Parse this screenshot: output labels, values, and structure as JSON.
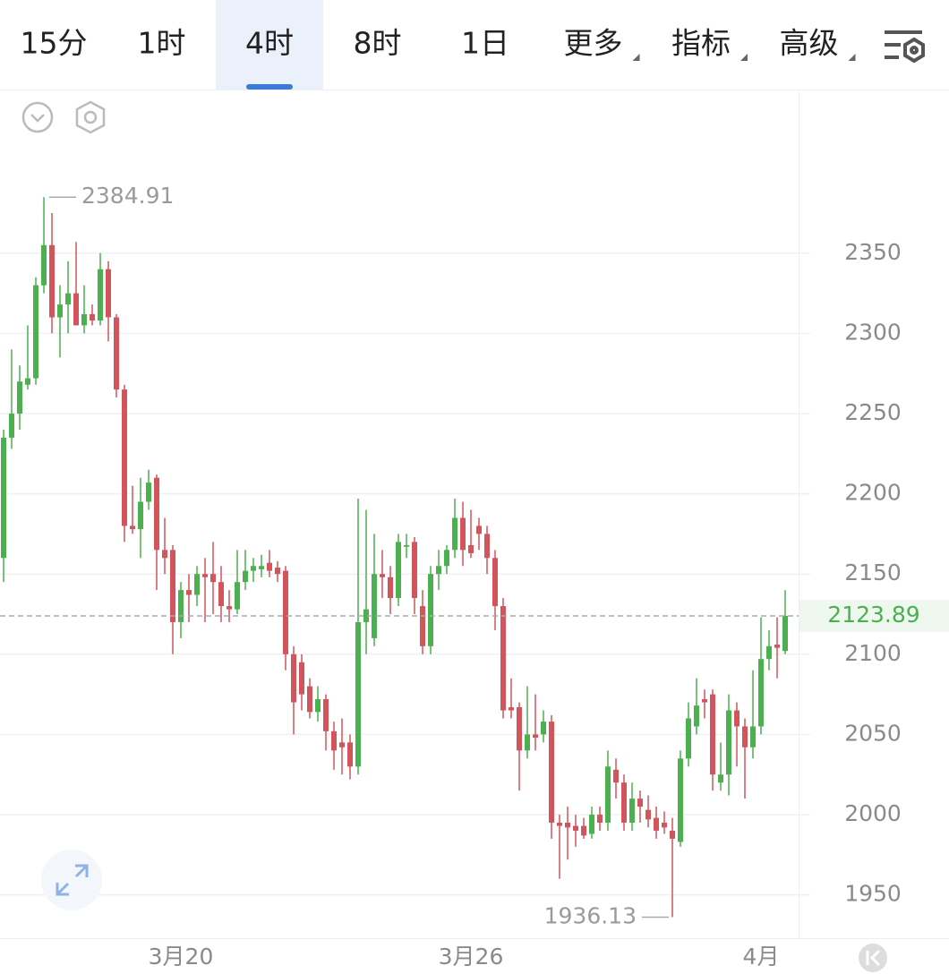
{
  "toolbar": {
    "tabs": [
      "15分",
      "1时",
      "4时",
      "8时",
      "1日",
      "更多",
      "指标",
      "高级"
    ],
    "active_tab": 2
  },
  "chart_data": {
    "type": "candlestick",
    "categories": [
      null,
      null,
      null,
      null,
      null,
      null,
      null,
      null,
      null,
      null,
      null,
      null,
      null,
      null,
      null,
      null,
      null,
      null,
      null,
      null,
      null,
      null,
      "3月20",
      null,
      null,
      null,
      null,
      null,
      null,
      null,
      null,
      null,
      null,
      null,
      null,
      null,
      null,
      null,
      null,
      null,
      null,
      null,
      null,
      null,
      null,
      null,
      null,
      null,
      null,
      null,
      null,
      null,
      null,
      null,
      null,
      null,
      null,
      null,
      "3月26",
      null,
      null,
      null,
      null,
      null,
      null,
      null,
      null,
      null,
      null,
      null,
      null,
      null,
      null,
      null,
      null,
      null,
      null,
      null,
      null,
      null,
      null,
      null,
      null,
      null,
      null,
      null,
      null,
      null,
      null,
      null,
      null,
      null,
      null,
      null,
      "4月",
      null,
      null,
      null
    ],
    "open": [
      2160,
      2235,
      2250,
      2268,
      2272,
      2330,
      2355,
      2310,
      2318,
      2325,
      2305,
      2312,
      2308,
      2340,
      2310,
      2265,
      2180,
      2178,
      2195,
      2210,
      2165,
      2165,
      2120,
      2140,
      2137,
      2150,
      2150,
      2145,
      2130,
      2128,
      2145,
      2152,
      2153,
      2157,
      2154,
      2152,
      2100,
      2095,
      2080,
      2064,
      2072,
      2052,
      2045,
      2045,
      2030,
      2120,
      2110,
      2150,
      2148,
      2135,
      2167,
      2170,
      2130,
      2105,
      2150,
      2155,
      2165,
      2185,
      2168,
      2180,
      2175,
      2160,
      2130,
      2067,
      2067,
      2040,
      2050,
      2050,
      2058,
      1995,
      1995,
      1993,
      1993,
      1988,
      2000,
      1995,
      2028,
      2020,
      1995,
      2010,
      2003,
      1998,
      1995,
      1990,
      1983,
      2035,
      2055,
      2072,
      2075,
      2020,
      2025,
      2065,
      2055,
      2042,
      2055,
      2097,
      2106,
      2102
    ],
    "high": [
      2240,
      2290,
      2280,
      2305,
      2335,
      2384.91,
      2375,
      2330,
      2345,
      2357,
      2330,
      2318,
      2350,
      2345,
      2312,
      2268,
      2205,
      2210,
      2215,
      2212,
      2185,
      2168,
      2145,
      2150,
      2155,
      2160,
      2170,
      2155,
      2140,
      2165,
      2165,
      2160,
      2162,
      2165,
      2158,
      2155,
      2105,
      2100,
      2085,
      2080,
      2075,
      2058,
      2060,
      2050,
      2197,
      2190,
      2175,
      2165,
      2155,
      2175,
      2175,
      2173,
      2140,
      2155,
      2165,
      2168,
      2197,
      2195,
      2190,
      2185,
      2180,
      2165,
      2135,
      2085,
      2070,
      2080,
      2075,
      2065,
      2062,
      2000,
      2005,
      2000,
      1998,
      2005,
      2005,
      2040,
      2035,
      2025,
      2020,
      2015,
      2012,
      2005,
      2002,
      1998,
      2040,
      2070,
      2085,
      2078,
      2078,
      2045,
      2075,
      2070,
      2060,
      2090,
      2123,
      2115,
      2123,
      2140
    ],
    "low": [
      2145,
      2228,
      2240,
      2265,
      2268,
      2325,
      2300,
      2285,
      2300,
      2305,
      2300,
      2305,
      2305,
      2295,
      2260,
      2170,
      2175,
      2160,
      2190,
      2140,
      2150,
      2100,
      2110,
      2120,
      2130,
      2120,
      2125,
      2120,
      2120,
      2125,
      2140,
      2145,
      2148,
      2148,
      2145,
      2090,
      2050,
      2065,
      2060,
      2058,
      2040,
      2028,
      2025,
      2022,
      2025,
      2100,
      2105,
      2135,
      2125,
      2130,
      2160,
      2125,
      2100,
      2100,
      2140,
      2150,
      2160,
      2155,
      2160,
      2165,
      2150,
      2115,
      2060,
      2060,
      2015,
      2035,
      2040,
      2045,
      1985,
      1960,
      1972,
      1980,
      1985,
      1985,
      1990,
      1990,
      2010,
      1990,
      1990,
      1995,
      1992,
      1985,
      1988,
      1936.13,
      1980,
      2030,
      2050,
      2060,
      2015,
      2015,
      2012,
      2030,
      2010,
      2035,
      2050,
      2090,
      2085,
      2100
    ],
    "close": [
      2235,
      2250,
      2270,
      2272,
      2330,
      2355,
      2310,
      2318,
      2325,
      2305,
      2312,
      2308,
      2340,
      2310,
      2265,
      2180,
      2178,
      2195,
      2207,
      2165,
      2160,
      2120,
      2140,
      2137,
      2150,
      2148,
      2145,
      2130,
      2128,
      2145,
      2152,
      2155,
      2155,
      2152,
      2150,
      2100,
      2070,
      2075,
      2064,
      2072,
      2052,
      2040,
      2042,
      2030,
      2120,
      2128,
      2150,
      2148,
      2135,
      2170,
      2168,
      2135,
      2105,
      2150,
      2155,
      2165,
      2185,
      2165,
      2163,
      2175,
      2160,
      2130,
      2065,
      2065,
      2040,
      2050,
      2048,
      2058,
      1995,
      1993,
      1992,
      1990,
      1987,
      2000,
      1995,
      2030,
      2020,
      1995,
      2010,
      2005,
      1997,
      1990,
      1992,
      1985,
      2035,
      2060,
      2068,
      2070,
      2025,
      2025,
      2065,
      2055,
      2042,
      2055,
      2097,
      2105,
      2104,
      2123.89
    ],
    "up_color": "#4caf50",
    "down_color": "#d1555b",
    "high_marker": 2384.91,
    "low_marker": 1936.13,
    "last_price": 2123.89,
    "ylim": [
      1923,
      2452
    ],
    "yticks": [
      1950,
      2000,
      2050,
      2100,
      2150,
      2200,
      2250,
      2300,
      2350
    ],
    "grid": true
  }
}
